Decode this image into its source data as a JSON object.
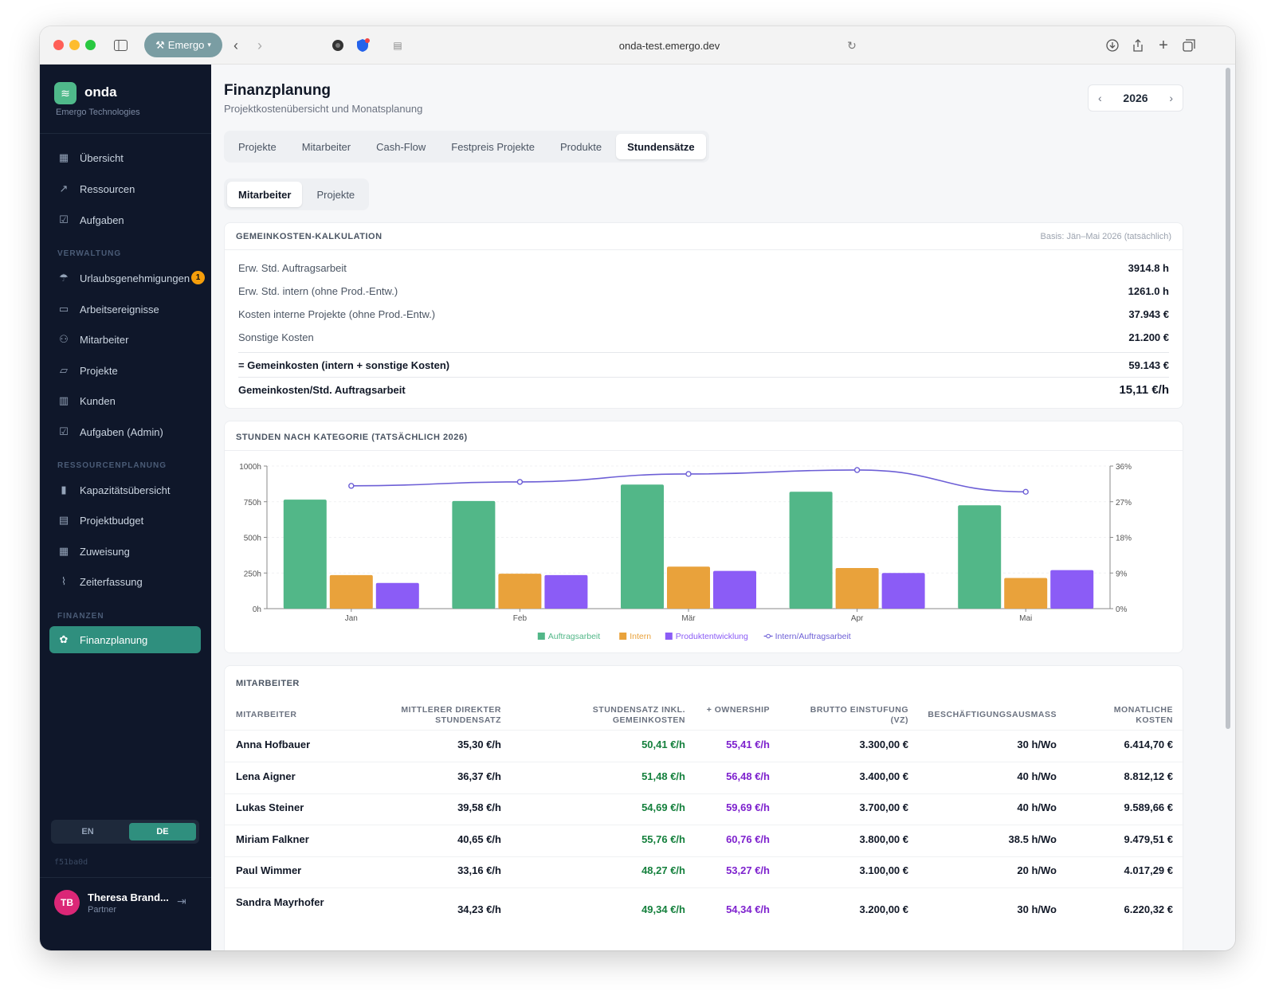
{
  "browser": {
    "profile": "Emergo",
    "url": "onda-test.emergo.dev"
  },
  "sidebar": {
    "brand": "onda",
    "company": "Emergo Technologies",
    "items_main": [
      {
        "label": "Übersicht",
        "icon": "grid-icon"
      },
      {
        "label": "Ressourcen",
        "icon": "trend-icon"
      },
      {
        "label": "Aufgaben",
        "icon": "check-icon"
      }
    ],
    "section_verwaltung": "VERWALTUNG",
    "items_verwaltung": [
      {
        "label": "Urlaubsgenehmigungen",
        "icon": "umbrella-icon",
        "badge": "1"
      },
      {
        "label": "Arbeitsereignisse",
        "icon": "calendar-icon"
      },
      {
        "label": "Mitarbeiter",
        "icon": "users-icon"
      },
      {
        "label": "Projekte",
        "icon": "folder-icon"
      },
      {
        "label": "Kunden",
        "icon": "building-icon"
      },
      {
        "label": "Aufgaben (Admin)",
        "icon": "check-icon"
      }
    ],
    "section_ressourcen": "RESSOURCENPLANUNG",
    "items_ressourcen": [
      {
        "label": "Kapazitätsübersicht",
        "icon": "bar-chart-icon"
      },
      {
        "label": "Projektbudget",
        "icon": "table-icon"
      },
      {
        "label": "Zuweisung",
        "icon": "grid-icon"
      },
      {
        "label": "Zeiterfassung",
        "icon": "activity-icon"
      }
    ],
    "section_finanzen": "FINANZEN",
    "items_finanzen": [
      {
        "label": "Finanzplanung",
        "icon": "piggy-icon"
      }
    ],
    "lang_en": "EN",
    "lang_de": "DE",
    "build_hash": "f51ba0d",
    "user": {
      "initials": "TB",
      "name": "Theresa Brand...",
      "role": "Partner"
    }
  },
  "header": {
    "title": "Finanzplanung",
    "subtitle": "Projektkostenübersicht und Monatsplanung",
    "year": "2026"
  },
  "tabs": [
    "Projekte",
    "Mitarbeiter",
    "Cash-Flow",
    "Festpreis Projekte",
    "Produkte",
    "Stundensätze"
  ],
  "active_tab": 5,
  "subtabs": [
    "Mitarbeiter",
    "Projekte"
  ],
  "overhead": {
    "title": "GEMEINKOSTEN-KALKULATION",
    "basis": "Basis: Jän–Mai 2026 (tatsächlich)",
    "rows": [
      {
        "label": "Erw. Std. Auftragsarbeit",
        "value": "3914.8 h"
      },
      {
        "label": "Erw. Std. intern (ohne Prod.-Entw.)",
        "value": "1261.0 h"
      },
      {
        "label": "Kosten interne Projekte (ohne Prod.-Entw.)",
        "value": "37.943 €"
      },
      {
        "label": "Sonstige Kosten",
        "value": "21.200 €"
      }
    ],
    "sum_label": "= Gemeinkosten (intern + sonstige Kosten)",
    "sum_value": "59.143 €",
    "rate_label": "Gemeinkosten/Std. Auftragsarbeit",
    "rate_value": "15,11 €/h"
  },
  "chart_title": "STUNDEN NACH KATEGORIE (TATSÄCHLICH 2026)",
  "chart_data": {
    "type": "bar",
    "categories": [
      "Jan",
      "Feb",
      "Mär",
      "Apr",
      "Mai"
    ],
    "series": [
      {
        "name": "Auftragsarbeit",
        "values": [
          765,
          755,
          870,
          820,
          725
        ],
        "color": "#52b788"
      },
      {
        "name": "Intern",
        "values": [
          235,
          245,
          295,
          285,
          215
        ],
        "color": "#e9a23b"
      },
      {
        "name": "Produktentwicklung",
        "values": [
          180,
          235,
          265,
          250,
          270
        ],
        "color": "#8b5cf6"
      }
    ],
    "line_series": {
      "name": "Intern/Auftragsarbeit",
      "values": [
        31,
        32,
        34,
        35,
        29.5
      ],
      "color": "#6d5fd6",
      "axis": "right"
    },
    "y_ticks": [
      "0h",
      "250h",
      "500h",
      "750h",
      "1000h"
    ],
    "y_right_ticks": [
      "0%",
      "9%",
      "18%",
      "27%",
      "36%"
    ],
    "ylim": [
      0,
      1000
    ],
    "y_right_lim": [
      0,
      36
    ],
    "legend": "bottom-center"
  },
  "employees": {
    "title": "MITARBEITER",
    "columns": [
      "MITARBEITER",
      "MITTLERER DIREKTER STUNDENSATZ",
      "STUNDENSATZ INKL. GEMEINKOSTEN",
      "+ OWNERSHIP",
      "BRUTTO EINSTUFUNG (VZ)",
      "BESCHÄFTIGUNGSAUSMASS",
      "MONATLICHE KOSTEN"
    ],
    "rows": [
      {
        "name": "Anna Hofbauer",
        "direct": "35,30 €/h",
        "overhead": "50,41 €/h",
        "ownership": "55,41 €/h",
        "brutto": "3.300,00 €",
        "hours": "30 h/Wo",
        "monthly": "6.414,70 €"
      },
      {
        "name": "Lena Aigner",
        "direct": "36,37 €/h",
        "overhead": "51,48 €/h",
        "ownership": "56,48 €/h",
        "brutto": "3.400,00 €",
        "hours": "40 h/Wo",
        "monthly": "8.812,12 €"
      },
      {
        "name": "Lukas Steiner",
        "direct": "39,58 €/h",
        "overhead": "54,69 €/h",
        "ownership": "59,69 €/h",
        "brutto": "3.700,00 €",
        "hours": "40 h/Wo",
        "monthly": "9.589,66 €"
      },
      {
        "name": "Miriam Falkner",
        "direct": "40,65 €/h",
        "overhead": "55,76 €/h",
        "ownership": "60,76 €/h",
        "brutto": "3.800,00 €",
        "hours": "38.5 h/Wo",
        "monthly": "9.479,51 €"
      },
      {
        "name": "Paul Wimmer",
        "direct": "33,16 €/h",
        "overhead": "48,27 €/h",
        "ownership": "53,27 €/h",
        "brutto": "3.100,00 €",
        "hours": "20 h/Wo",
        "monthly": "4.017,29 €"
      },
      {
        "name": "Sandra Mayrhofer",
        "direct": "34,23 €/h",
        "overhead": "49,34 €/h",
        "ownership": "54,34 €/h",
        "brutto": "3.200,00 €",
        "hours": "30 h/Wo",
        "monthly": "6.220,32 €"
      }
    ]
  }
}
